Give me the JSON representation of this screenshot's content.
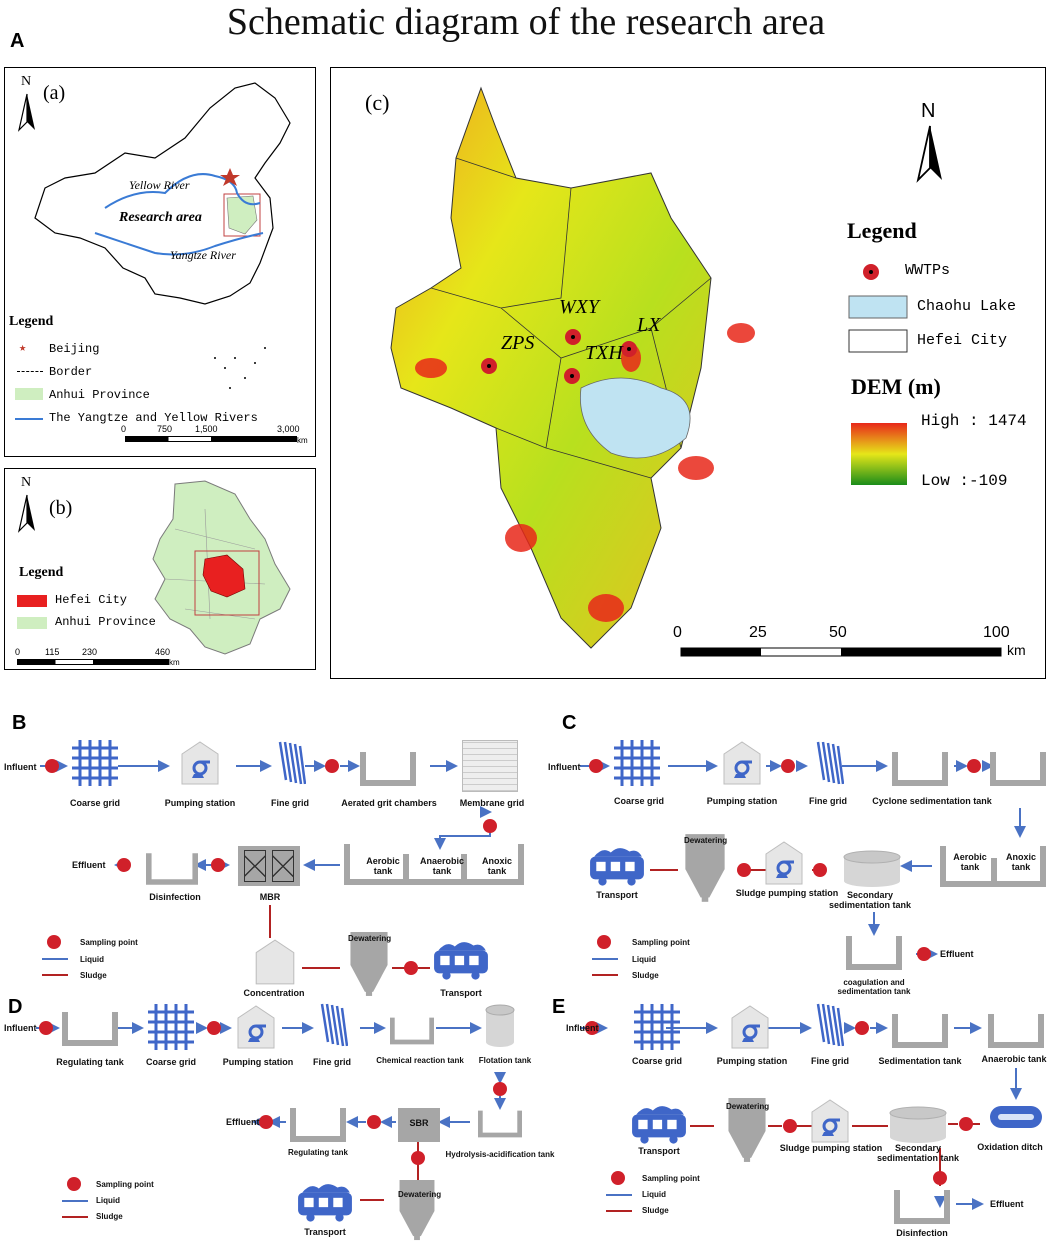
{
  "figure": {
    "title": "Schematic diagram of the research area",
    "panel_labels": [
      "A",
      "B",
      "C",
      "D",
      "E"
    ]
  },
  "map_a": {
    "label": "(a)",
    "north": "N",
    "texts": {
      "yellow_river": "Yellow River",
      "research_area": "Research area",
      "yangtze_river": "Yangtze River"
    },
    "legend_title": "Legend",
    "legend": [
      "Beijing",
      "Border",
      "Anhui Province",
      "The Yangtze and Yellow Rivers"
    ],
    "scale": [
      "0",
      "750",
      "1,500",
      "3,000"
    ],
    "unit": "km"
  },
  "map_b": {
    "label": "(b)",
    "north": "N",
    "legend_title": "Legend",
    "legend": [
      "Hefei City",
      "Anhui Province"
    ],
    "scale": [
      "0",
      "115",
      "230",
      "460"
    ],
    "unit": "km"
  },
  "map_c": {
    "label": "(c)",
    "north": "N",
    "sites": [
      "WXY",
      "LX",
      "ZPS",
      "TXH"
    ],
    "legend_title": "Legend",
    "legend": [
      "WWTPs",
      "Chaohu Lake",
      "Hefei City"
    ],
    "dem_title": "DEM (m)",
    "dem_high": "High : 1474",
    "dem_low": "Low :-109",
    "scale": [
      "0",
      "25",
      "50",
      "100"
    ],
    "unit": "km",
    "colors": {
      "lake": "#bfe3f2",
      "high": "#e8281a",
      "mid": "#e6e619",
      "low": "#1a8c1a"
    }
  },
  "flow_b": {
    "influent": "Influent",
    "coarse_grid": "Coarse grid",
    "pumping_station": "Pumping station",
    "fine_grid": "Fine grid",
    "aerated": "Aerated grit chambers",
    "membrane_grid": "Membrane grid",
    "anoxic": "Anoxic tank",
    "anaerobic": "Anaerobic tank",
    "aerobic": "Aerobic tank",
    "mbr": "MBR",
    "disinfection": "Disinfection",
    "effluent": "Effluent",
    "concentration": "Concentration",
    "dewatering": "Dewatering",
    "transport": "Transport"
  },
  "flow_c": {
    "influent": "Influent",
    "coarse_grid": "Coarse grid",
    "pumping_station": "Pumping station",
    "fine_grid": "Fine grid",
    "cyclone": "Cyclone sedimentation tank",
    "aerobic": "Aerobic tank",
    "anoxic": "Anoxic tank",
    "secondary": "Secondary sedimentation tank",
    "sludge_pump": "Sludge pumping station",
    "dewatering": "Dewatering",
    "transport": "Transport",
    "coagulation": "coagulation and sedimentation tank",
    "effluent": "Effluent"
  },
  "flow_d": {
    "influent": "Influent",
    "regulating": "Regulating tank",
    "coarse_grid": "Coarse grid",
    "pumping_station": "Pumping station",
    "fine_grid": "Fine grid",
    "chemical": "Chemical reaction tank",
    "flotation": "Flotation tank",
    "hydrolysis": "Hydrolysis-acidification tank",
    "sbr": "SBR",
    "regulating2": "Regulating tank",
    "effluent": "Effluent",
    "dewatering": "Dewatering",
    "transport": "Transport"
  },
  "flow_e": {
    "influent": "Influent",
    "coarse_grid": "Coarse grid",
    "pumping_station": "Pumping station",
    "fine_grid": "Fine grid",
    "sedimentation": "Sedimentation tank",
    "anaerobic": "Anaerobic tank",
    "oxidation": "Oxidation ditch",
    "secondary": "Secondary sedimentation tank",
    "sludge_pump": "Sludge pumping station",
    "dewatering": "Dewatering",
    "transport": "Transport",
    "disinfection": "Disinfection",
    "effluent": "Effluent"
  },
  "flow_legend": {
    "sampling": "Sampling point",
    "liquid": "Liquid",
    "sludge": "Sludge"
  },
  "flow_colors": {
    "liquid": "#4a72c4",
    "sludge": "#b22222",
    "sample": "#d0202a",
    "tank": "#a6a6a6",
    "equip": "#3f66c8"
  }
}
